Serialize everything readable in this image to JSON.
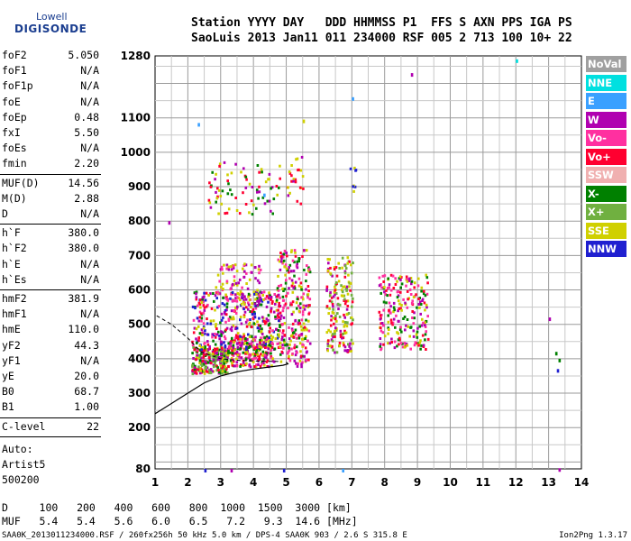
{
  "logo": {
    "line1": "Lowell",
    "line2": "DIGISONDE"
  },
  "header": {
    "row1": "Station YYYY DAY   DDD HHMMSS P1  FFS S AXN PPS IGA PS",
    "row2": "SaoLuis 2013 Jan11 011 234000 RSF 005 2 713 100 10+ 22"
  },
  "params_groups": [
    [
      {
        "label": "foF2",
        "value": "5.050"
      },
      {
        "label": "foF1",
        "value": "N/A"
      },
      {
        "label": "foF1p",
        "value": "N/A"
      },
      {
        "label": "foE",
        "value": "N/A"
      },
      {
        "label": "foEp",
        "value": "0.48"
      },
      {
        "label": "fxI",
        "value": "5.50"
      },
      {
        "label": "foEs",
        "value": "N/A"
      },
      {
        "label": "fmin",
        "value": "2.20"
      }
    ],
    [
      {
        "label": "MUF(D)",
        "value": "14.56"
      },
      {
        "label": "M(D)",
        "value": "2.88"
      },
      {
        "label": "D",
        "value": "N/A"
      }
    ],
    [
      {
        "label": "h`F",
        "value": "380.0"
      },
      {
        "label": "h`F2",
        "value": "380.0"
      },
      {
        "label": "h`E",
        "value": "N/A"
      },
      {
        "label": "h`Es",
        "value": "N/A"
      }
    ],
    [
      {
        "label": "hmF2",
        "value": "381.9"
      },
      {
        "label": "hmF1",
        "value": "N/A"
      },
      {
        "label": "hmE",
        "value": "110.0"
      },
      {
        "label": "yF2",
        "value": "44.3"
      },
      {
        "label": "yF1",
        "value": "N/A"
      },
      {
        "label": "yE",
        "value": "20.0"
      },
      {
        "label": "B0",
        "value": "68.7"
      },
      {
        "label": "B1",
        "value": "1.00"
      }
    ],
    [
      {
        "label": "C-level",
        "value": "22"
      }
    ]
  ],
  "auto": [
    "Auto:",
    "Artist5",
    "500200"
  ],
  "muf_table": {
    "d_label": "D",
    "d_values": [
      "100",
      "200",
      "400",
      "600",
      "800",
      "1000",
      "1500",
      "3000"
    ],
    "d_unit": "[km]",
    "muf_label": "MUF",
    "muf_values": [
      "5.4",
      "5.4",
      "5.6",
      "6.0",
      "6.5",
      "7.2",
      "9.3",
      "14.6"
    ],
    "muf_unit": "[MHz]"
  },
  "footer": "SAA0K_2013011234000.RSF / 260fx256h 50 kHz 5.0 km / DPS-4 SAA0K 903 / 2.6 S 315.8 E",
  "version": "Ion2Png 1.3.17",
  "legend": [
    {
      "label": "NoVal",
      "color": "#a0a0a0"
    },
    {
      "label": "NNE",
      "color": "#00e0e0"
    },
    {
      "label": "E",
      "color": "#3aa0ff"
    },
    {
      "label": "W",
      "color": "#b000b0"
    },
    {
      "label": "Vo-",
      "color": "#ff30a0"
    },
    {
      "label": "Vo+",
      "color": "#ff0030"
    },
    {
      "label": "SSW",
      "color": "#f0b0b0"
    },
    {
      "label": "X-",
      "color": "#008000"
    },
    {
      "label": "X+",
      "color": "#70b040"
    },
    {
      "label": "SSE",
      "color": "#d0d000"
    },
    {
      "label": "NNW",
      "color": "#2020d0"
    }
  ],
  "chart_data": {
    "type": "scatter",
    "x_range": [
      1,
      14
    ],
    "y_range": [
      80,
      1280
    ],
    "x_ticks": [
      1,
      2,
      3,
      4,
      5,
      6,
      7,
      8,
      9,
      10,
      11,
      12,
      13,
      14
    ],
    "y_ticks": [
      80,
      200,
      300,
      400,
      500,
      600,
      700,
      800,
      900,
      1000,
      1100,
      1280
    ],
    "grid": true,
    "clusters": [
      {
        "x": [
          2.1,
          3.2
        ],
        "y": [
          360,
          440
        ],
        "colors": [
          "Vo+",
          "X-",
          "X+",
          "SSE",
          "W"
        ],
        "n": 260
      },
      {
        "x": [
          3.2,
          4.6
        ],
        "y": [
          380,
          470
        ],
        "colors": [
          "Vo+",
          "X-",
          "SSE",
          "W",
          "Vo-"
        ],
        "n": 240
      },
      {
        "x": [
          2.1,
          4.8
        ],
        "y": [
          430,
          600
        ],
        "colors": [
          "W",
          "Vo-",
          "Vo+",
          "SSE",
          "X-",
          "NNW"
        ],
        "n": 380
      },
      {
        "x": [
          2.8,
          4.2
        ],
        "y": [
          560,
          680
        ],
        "colors": [
          "SSE",
          "W",
          "Vo-"
        ],
        "n": 90
      },
      {
        "x": [
          4.7,
          5.7
        ],
        "y": [
          380,
          720
        ],
        "colors": [
          "SSE",
          "W",
          "Vo+",
          "X-",
          "Vo-"
        ],
        "n": 260
      },
      {
        "x": [
          6.2,
          7.0
        ],
        "y": [
          420,
          700
        ],
        "colors": [
          "SSE",
          "W",
          "Vo+",
          "X+"
        ],
        "n": 180
      },
      {
        "x": [
          7.8,
          9.3
        ],
        "y": [
          430,
          650
        ],
        "colors": [
          "W",
          "SSE",
          "Vo-",
          "X-",
          "Vo+"
        ],
        "n": 220
      },
      {
        "x": [
          2.6,
          4.8
        ],
        "y": [
          820,
          980
        ],
        "colors": [
          "W",
          "Vo+",
          "SSE",
          "X-"
        ],
        "n": 80
      },
      {
        "x": [
          5.0,
          5.5
        ],
        "y": [
          850,
          1000
        ],
        "colors": [
          "SSE",
          "W",
          "Vo+"
        ],
        "n": 25
      },
      {
        "x": [
          6.9,
          7.1
        ],
        "y": [
          880,
          1000
        ],
        "colors": [
          "NNW",
          "SSE"
        ],
        "n": 8
      }
    ],
    "curve": {
      "x": [
        1.0,
        1.5,
        2.0,
        2.5,
        3.0,
        3.5,
        4.0,
        4.5,
        4.9,
        5.05,
        5.0
      ],
      "y": [
        240,
        270,
        300,
        330,
        350,
        362,
        370,
        376,
        381,
        385,
        390
      ]
    },
    "dashed": {
      "x": [
        1.05,
        1.5,
        2.0,
        2.4,
        3.0,
        3.6,
        4.2,
        4.8
      ],
      "y": [
        525,
        500,
        460,
        420,
        400,
        395,
        393,
        392
      ]
    }
  }
}
